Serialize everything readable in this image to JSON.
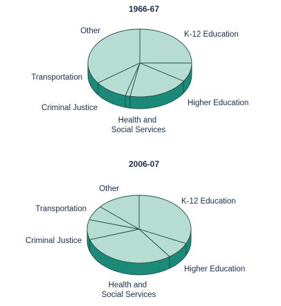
{
  "chart_data": [
    {
      "type": "pie",
      "title": "1966-67",
      "slices": [
        {
          "label": "K-12 Education",
          "value": 25
        },
        {
          "label": "Higher Education",
          "value": 9
        },
        {
          "label": "Health and Social Services",
          "value": 19
        },
        {
          "label": "Criminal Justice",
          "value": 1.5
        },
        {
          "label": "Transportation",
          "value": 10.5
        },
        {
          "label": "Other",
          "value": 35
        }
      ]
    },
    {
      "type": "pie",
      "title": "2006-07",
      "slices": [
        {
          "label": "K-12 Education",
          "value": 32
        },
        {
          "label": "Higher Education",
          "value": 8
        },
        {
          "label": "Health and Social Services",
          "value": 30
        },
        {
          "label": "Criminal Justice",
          "value": 9.5
        },
        {
          "label": "Transportation",
          "value": 7
        },
        {
          "label": "Other",
          "value": 13.5
        }
      ]
    }
  ],
  "colors": {
    "top": "#b7dcd2",
    "side": "#1c8a78",
    "edge": "#1f4f4a",
    "text": "#1a2b4a"
  }
}
